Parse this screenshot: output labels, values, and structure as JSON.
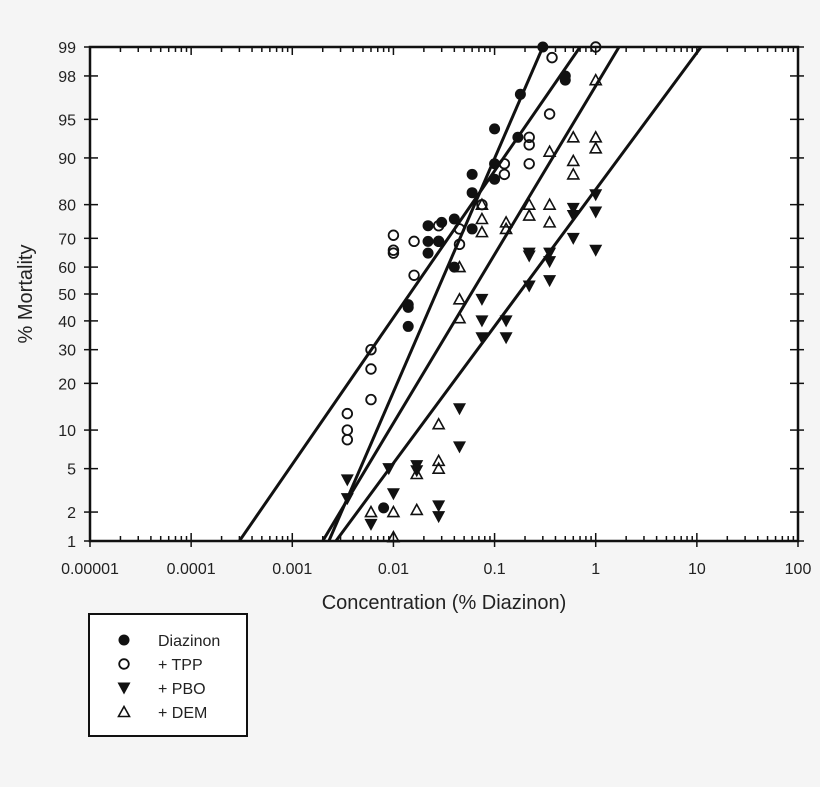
{
  "chart_data": {
    "type": "scatter",
    "xscale": "log",
    "yscale": "probit",
    "xlabel": "Concentration (% Diazinon)",
    "ylabel": "% Mortality",
    "xlim": [
      1e-05,
      100
    ],
    "ylim": [
      1,
      99
    ],
    "xticks": [
      "0.00001",
      "0.0001",
      "0.001",
      "0.01",
      "0.1",
      "1",
      "10",
      "100"
    ],
    "yticks": [
      "1",
      "2",
      "5",
      "10",
      "20",
      "30",
      "40",
      "50",
      "60",
      "70",
      "80",
      "90",
      "95",
      "98",
      "99"
    ],
    "legend": {
      "placement": "bottom-left",
      "entries": [
        "Diazinon",
        "+ TPP",
        "+ PBO",
        "+ DEM"
      ]
    },
    "series": [
      {
        "name": "Diazinon",
        "marker": "filled-circle",
        "points": [
          [
            0.008,
            2.2
          ],
          [
            0.014,
            38
          ],
          [
            0.014,
            45
          ],
          [
            0.014,
            46
          ],
          [
            0.022,
            65
          ],
          [
            0.022,
            69
          ],
          [
            0.022,
            74
          ],
          [
            0.028,
            69
          ],
          [
            0.03,
            75
          ],
          [
            0.04,
            60
          ],
          [
            0.04,
            76
          ],
          [
            0.06,
            73
          ],
          [
            0.06,
            83
          ],
          [
            0.06,
            87
          ],
          [
            0.1,
            86
          ],
          [
            0.1,
            89
          ],
          [
            0.1,
            94
          ],
          [
            0.17,
            93
          ],
          [
            0.18,
            97
          ],
          [
            0.3,
            99
          ],
          [
            0.5,
            97.8
          ],
          [
            0.5,
            98
          ]
        ],
        "fit": [
          [
            0.0023,
            1
          ],
          [
            0.3,
            99
          ]
        ]
      },
      {
        "name": "+ TPP",
        "marker": "open-circle",
        "points": [
          [
            0.0035,
            8.5
          ],
          [
            0.0035,
            10
          ],
          [
            0.0035,
            13
          ],
          [
            0.006,
            16
          ],
          [
            0.006,
            24
          ],
          [
            0.006,
            30
          ],
          [
            0.01,
            65
          ],
          [
            0.01,
            66
          ],
          [
            0.01,
            71
          ],
          [
            0.016,
            57
          ],
          [
            0.016,
            69
          ],
          [
            0.028,
            69
          ],
          [
            0.028,
            74
          ],
          [
            0.045,
            68
          ],
          [
            0.045,
            73
          ],
          [
            0.075,
            80
          ],
          [
            0.125,
            87
          ],
          [
            0.125,
            89
          ],
          [
            0.22,
            89
          ],
          [
            0.22,
            92
          ],
          [
            0.22,
            93
          ],
          [
            0.35,
            95.5
          ],
          [
            0.37,
            98.7
          ],
          [
            1.0,
            99
          ]
        ],
        "fit": [
          [
            0.0003,
            1
          ],
          [
            0.7,
            99
          ]
        ]
      },
      {
        "name": "+ PBO",
        "marker": "filled-triangle-down",
        "points": [
          [
            0.0035,
            2.7
          ],
          [
            0.0035,
            4
          ],
          [
            0.006,
            1.5
          ],
          [
            0.009,
            5
          ],
          [
            0.01,
            3
          ],
          [
            0.017,
            4.8
          ],
          [
            0.017,
            5.3
          ],
          [
            0.028,
            1.8
          ],
          [
            0.028,
            2.3
          ],
          [
            0.045,
            7.5
          ],
          [
            0.045,
            14
          ],
          [
            0.075,
            34
          ],
          [
            0.075,
            40
          ],
          [
            0.075,
            48
          ],
          [
            0.13,
            34
          ],
          [
            0.13,
            40
          ],
          [
            0.22,
            53
          ],
          [
            0.22,
            64
          ],
          [
            0.22,
            65
          ],
          [
            0.35,
            55
          ],
          [
            0.35,
            62
          ],
          [
            0.35,
            65
          ],
          [
            0.6,
            70
          ],
          [
            0.6,
            77
          ],
          [
            0.6,
            79
          ],
          [
            1.0,
            66
          ],
          [
            1.0,
            78
          ],
          [
            1.0,
            82.5
          ]
        ],
        "fit": [
          [
            0.0027,
            1
          ],
          [
            11,
            99
          ]
        ]
      },
      {
        "name": "+ DEM",
        "marker": "open-triangle-up",
        "points": [
          [
            0.006,
            2
          ],
          [
            0.01,
            1.1
          ],
          [
            0.01,
            2
          ],
          [
            0.017,
            2.1
          ],
          [
            0.017,
            4.5
          ],
          [
            0.028,
            5
          ],
          [
            0.028,
            5.8
          ],
          [
            0.028,
            11
          ],
          [
            0.045,
            41
          ],
          [
            0.045,
            48
          ],
          [
            0.045,
            60
          ],
          [
            0.075,
            72
          ],
          [
            0.075,
            76
          ],
          [
            0.075,
            80
          ],
          [
            0.13,
            73
          ],
          [
            0.13,
            75
          ],
          [
            0.22,
            77
          ],
          [
            0.22,
            80
          ],
          [
            0.35,
            75
          ],
          [
            0.35,
            80
          ],
          [
            0.35,
            91
          ],
          [
            0.6,
            87
          ],
          [
            0.6,
            89.5
          ],
          [
            0.6,
            93
          ],
          [
            1.0,
            91.5
          ],
          [
            1.0,
            93
          ],
          [
            1.0,
            97.8
          ]
        ],
        "fit": [
          [
            0.002,
            1
          ],
          [
            1.7,
            99
          ]
        ]
      }
    ]
  }
}
